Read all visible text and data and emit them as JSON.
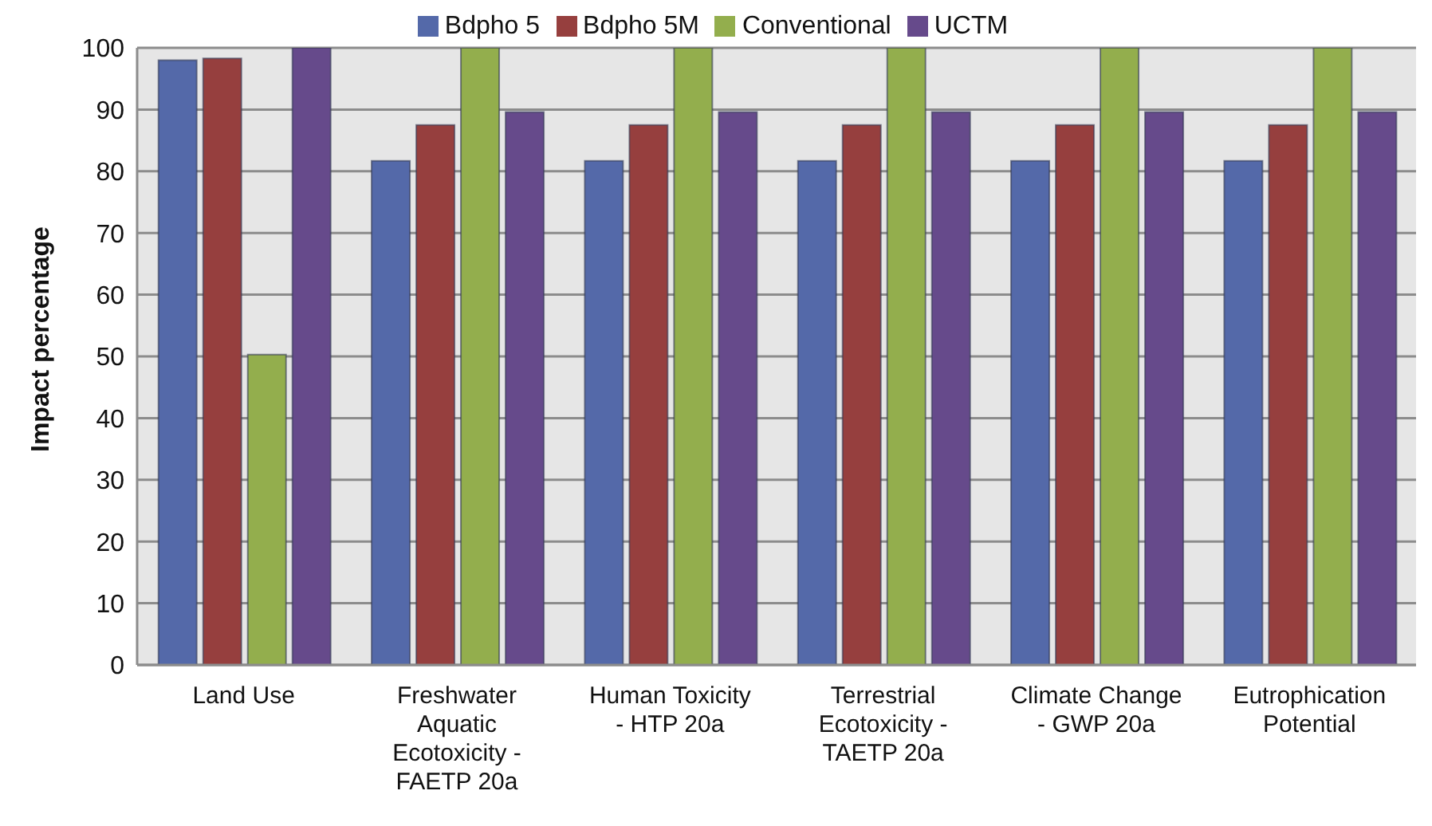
{
  "chart_data": {
    "type": "bar",
    "ylabel": "Impact percentage",
    "categories": [
      "Land Use",
      "Freshwater Aquatic Ecotoxicity - FAETP 20a",
      "Human Toxicity - HTP 20a",
      "Terrestrial Ecotoxicity - TAETP 20a",
      "Climate Change - GWP 20a",
      "Eutrophication Potential"
    ],
    "series": [
      {
        "name": "Bdpho 5",
        "color": "#5469a9",
        "values": [
          98.0,
          81.7,
          81.7,
          81.7,
          81.7,
          81.7
        ]
      },
      {
        "name": "Bdpho 5M",
        "color": "#963f3e",
        "values": [
          98.3,
          87.5,
          87.5,
          87.5,
          87.5,
          87.5
        ]
      },
      {
        "name": "Conventional",
        "color": "#93ae4d",
        "values": [
          50.3,
          100,
          100,
          100,
          100,
          100
        ]
      },
      {
        "name": "UCTM",
        "color": "#664a8b",
        "values": [
          100,
          89.6,
          89.6,
          89.6,
          89.6,
          89.6
        ]
      }
    ],
    "ylim": [
      0,
      100
    ],
    "yticks": [
      0,
      10,
      20,
      30,
      40,
      50,
      60,
      70,
      80,
      90,
      100
    ],
    "grid": "y",
    "legend": "top"
  }
}
